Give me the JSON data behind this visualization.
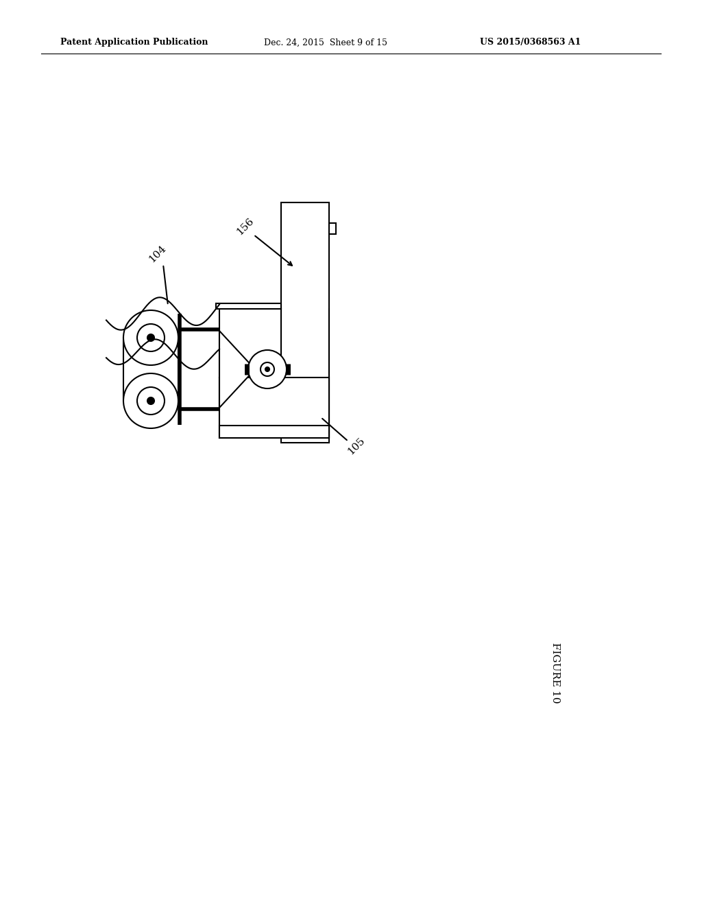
{
  "bg_color": "#ffffff",
  "line_color": "#000000",
  "lw": 1.5,
  "lw_thick": 4.0,
  "header_left": "Patent Application Publication",
  "header_center": "Dec. 24, 2015  Sheet 9 of 15",
  "header_right": "US 2015/0368563 A1",
  "figure_label": "FIGURE 10",
  "label_104": "104",
  "label_156": "156",
  "label_105": "105"
}
